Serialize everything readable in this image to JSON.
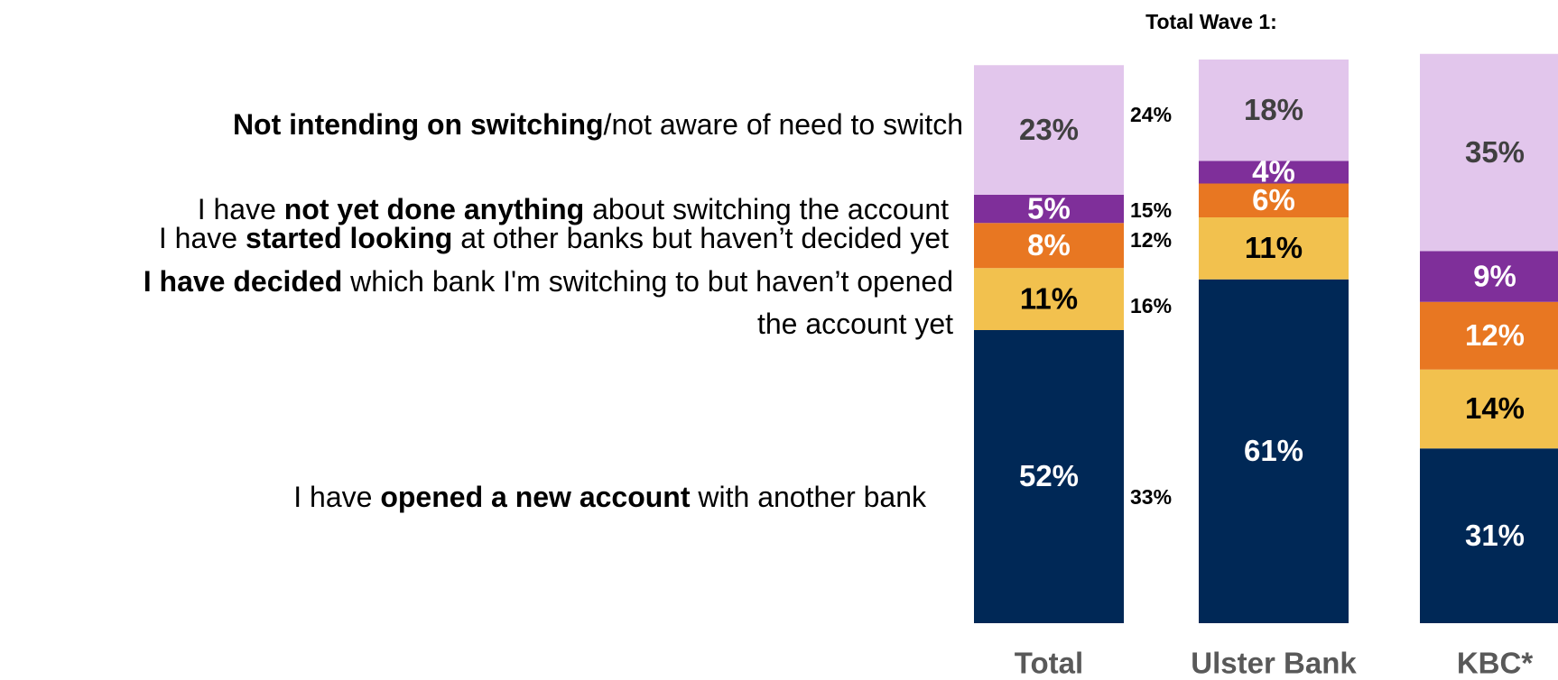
{
  "chart_data": {
    "type": "stacked_bar",
    "categories": [
      "Total",
      "Ulster Bank",
      "KBC*"
    ],
    "series": [
      {
        "name": [
          [
            {
              "text": "I have "
            },
            {
              "text": "opened a new account",
              "bold": true
            },
            {
              "text": " with another bank"
            }
          ]
        ],
        "color": "#002856",
        "label_color": "#ffffff",
        "values": [
          52,
          61,
          31
        ]
      },
      {
        "name": [
          [
            {
              "text": "I have decided",
              "bold": true
            },
            {
              "text": " which bank I'm switching to but haven’t opened"
            }
          ],
          [
            {
              "text": "the account yet"
            }
          ]
        ],
        "color": "#f2c14e",
        "label_color": "#000000",
        "values": [
          11,
          11,
          14
        ]
      },
      {
        "name": [
          [
            {
              "text": "I have "
            },
            {
              "text": "started looking",
              "bold": true
            },
            {
              "text": " at other banks but haven’t decided yet"
            }
          ]
        ],
        "color": "#e87722",
        "label_color": "#ffffff",
        "values": [
          8,
          6,
          12
        ]
      },
      {
        "name": [
          [
            {
              "text": "I have "
            },
            {
              "text": "not yet done anything",
              "bold": true
            },
            {
              "text": " about switching the account"
            }
          ]
        ],
        "color": "#7f2f9a",
        "label_color": "#ffffff",
        "values": [
          5,
          4,
          9
        ]
      },
      {
        "name": [
          [
            {
              "text": "Not intending on switching",
              "bold": true
            },
            {
              "text": "/not aware of need to switch"
            }
          ]
        ],
        "color": "#e2c6ec",
        "label_color": "#404040",
        "values": [
          23,
          18,
          35
        ]
      }
    ],
    "value_labels": [
      [
        "52%",
        "61%",
        "31%"
      ],
      [
        "11%",
        "11%",
        "14%"
      ],
      [
        "8%",
        "6%",
        "12%"
      ],
      [
        "5%",
        "4%",
        "9%"
      ],
      [
        "23%",
        "18%",
        "35%"
      ]
    ],
    "annotation": {
      "title": "Total Wave 1:",
      "values": [
        33,
        16,
        12,
        15,
        24
      ],
      "value_labels": [
        "33%",
        "16%",
        "12%",
        "15%",
        "24%"
      ]
    },
    "ylim": [
      0,
      100
    ]
  }
}
